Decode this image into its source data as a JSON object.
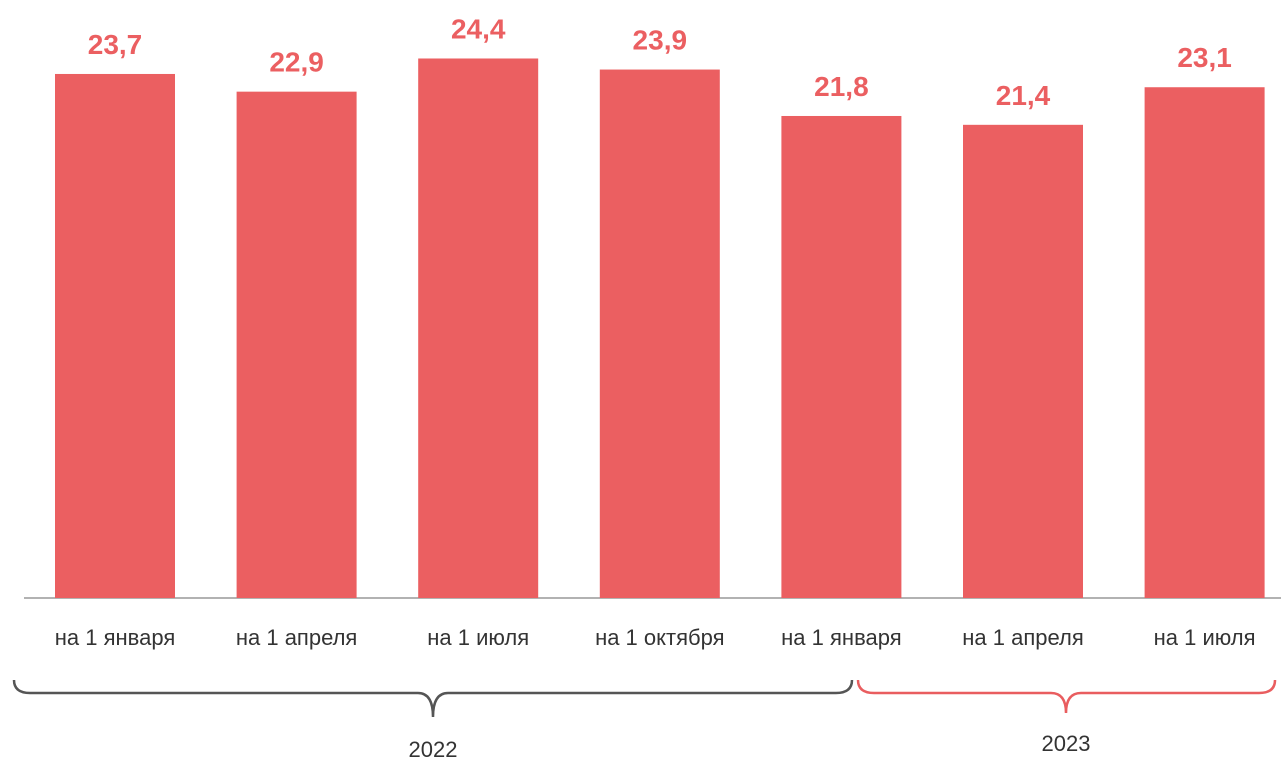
{
  "chart_data": {
    "type": "bar",
    "categories": [
      "на 1 января",
      "на 1 апреля",
      "на 1 июля",
      "на 1 октября",
      "на 1 января",
      "на 1 апреля",
      "на 1 июля"
    ],
    "values": [
      23.7,
      22.9,
      24.4,
      23.9,
      21.8,
      21.4,
      23.1
    ],
    "value_labels": [
      "23,7",
      "22,9",
      "24,4",
      "23,9",
      "21,8",
      "21,4",
      "23,1"
    ],
    "color": "#eb5f61",
    "ylim": [
      0,
      27
    ],
    "groups": [
      {
        "label": "2022"
      },
      {
        "label": "2023"
      }
    ]
  }
}
